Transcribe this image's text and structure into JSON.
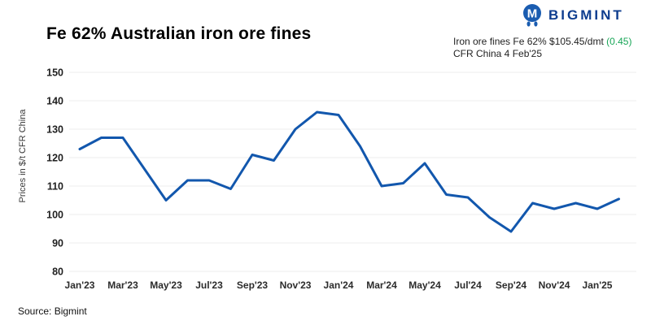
{
  "header": {
    "title": "Fe 62% Australian iron ore fines",
    "logo": {
      "text": "BIGMINT",
      "icon": "bigmint-mark"
    },
    "annotation": {
      "line1_prefix": "Iron ore fines Fe 62% $105.45/dmt ",
      "line1_change": "(0.45)",
      "line2": "CFR China 4 Feb'25",
      "change_color": "#18a657"
    }
  },
  "chart_data": {
    "type": "line",
    "title": "Fe 62% Australian iron ore fines",
    "ylabel": "Prices in $/t CFR China",
    "categories": [
      "Jan'23",
      "Feb'23",
      "Mar'23",
      "Apr'23",
      "May'23",
      "Jun'23",
      "Jul'23",
      "Aug'23",
      "Sep'23",
      "Oct'23",
      "Nov'23",
      "Dec'23",
      "Jan'24",
      "Feb'24",
      "Mar'24",
      "Apr'24",
      "May'24",
      "Jun'24",
      "Jul'24",
      "Aug'24",
      "Sep'24",
      "Oct'24",
      "Nov'24",
      "Dec'24",
      "Jan'25",
      "Feb'25"
    ],
    "values": [
      123,
      127,
      127,
      116,
      105,
      112,
      112,
      109,
      121,
      119,
      130,
      136,
      135,
      124,
      110,
      111,
      118,
      107,
      106,
      99,
      94,
      104,
      102,
      104,
      102,
      105.45
    ],
    "x_tick_labels": [
      "Jan'23",
      "Mar'23",
      "May'23",
      "Jul'23",
      "Sep'23",
      "Nov'23",
      "Jan'24",
      "Mar'24",
      "May'24",
      "Jul'24",
      "Sep'24",
      "Nov'24",
      "Jan'25"
    ],
    "yticks": [
      80,
      90,
      100,
      110,
      120,
      130,
      140,
      150
    ],
    "ylim": [
      80,
      150
    ],
    "grid": true,
    "legend": "none",
    "line_color": "#1257ad",
    "grid_color": "#ececec"
  },
  "footer": {
    "source": "Source: Bigmint"
  }
}
